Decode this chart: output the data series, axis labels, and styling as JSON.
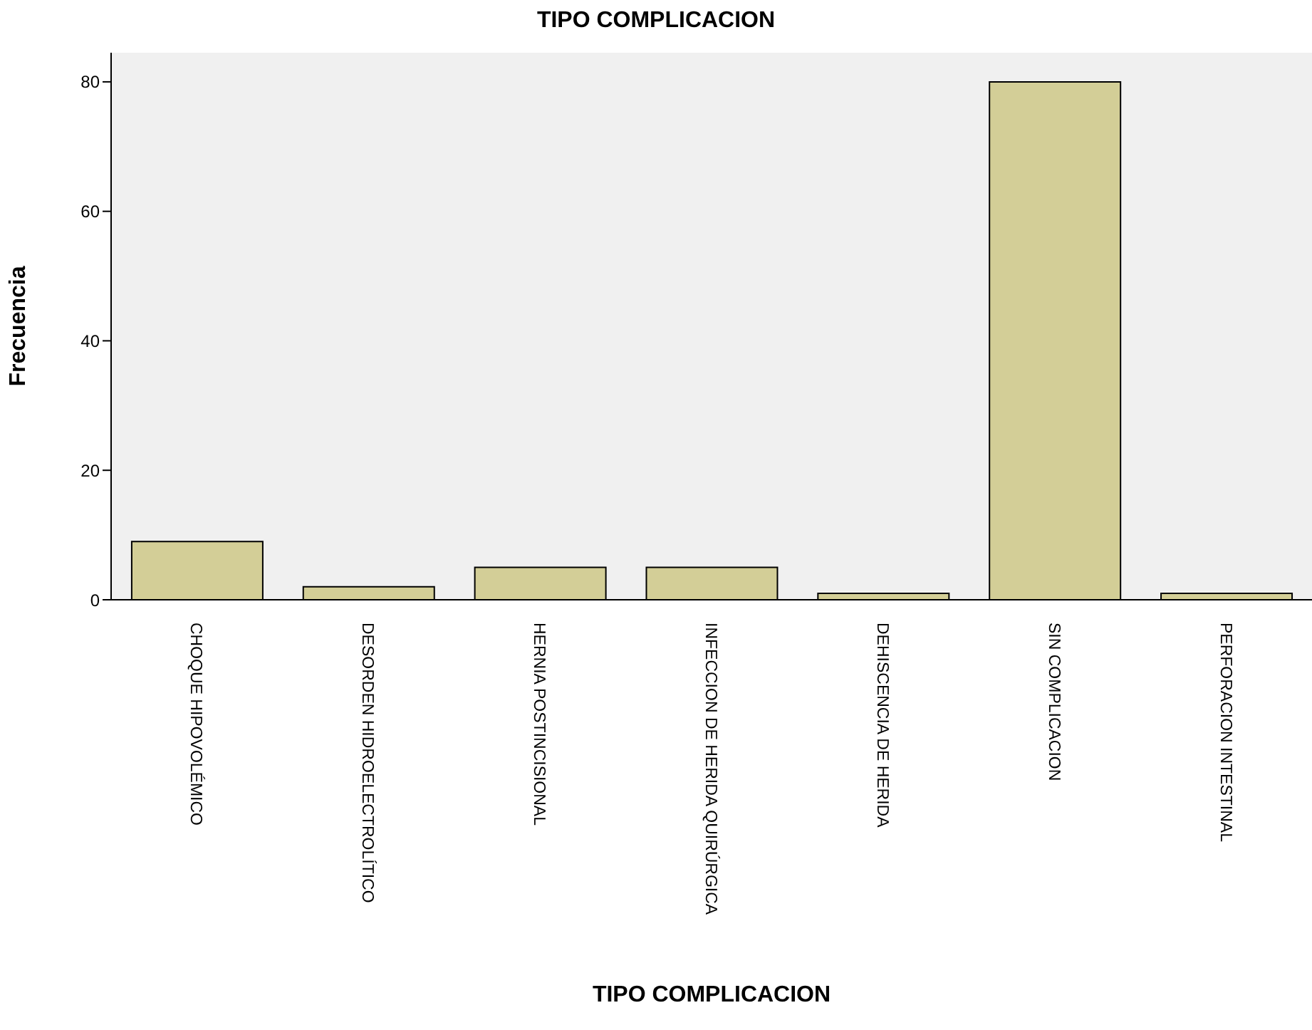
{
  "chart_data": {
    "type": "bar",
    "title": "TIPO COMPLICACION",
    "xlabel": "TIPO COMPLICACION",
    "ylabel": "Frecuencia",
    "categories": [
      "CHOQUE HIPOVOLÉMICO",
      "DESORDEN HIDROELECTROLÍTICO",
      "HERNIA POSTINCISIONAL",
      "INFECCION DE HERIDA QUIRÚRGICA",
      "DEHISCENCIA DE HERIDA",
      "SIN COMPLICACION",
      "PERFORACION INTESTINAL"
    ],
    "values": [
      9,
      2,
      5,
      5,
      1,
      80,
      1
    ],
    "color": "#d3ce97",
    "ylim": [
      0,
      84.5
    ],
    "yticks": [
      0,
      20,
      40,
      60,
      80
    ],
    "grid": false,
    "legend": false
  }
}
